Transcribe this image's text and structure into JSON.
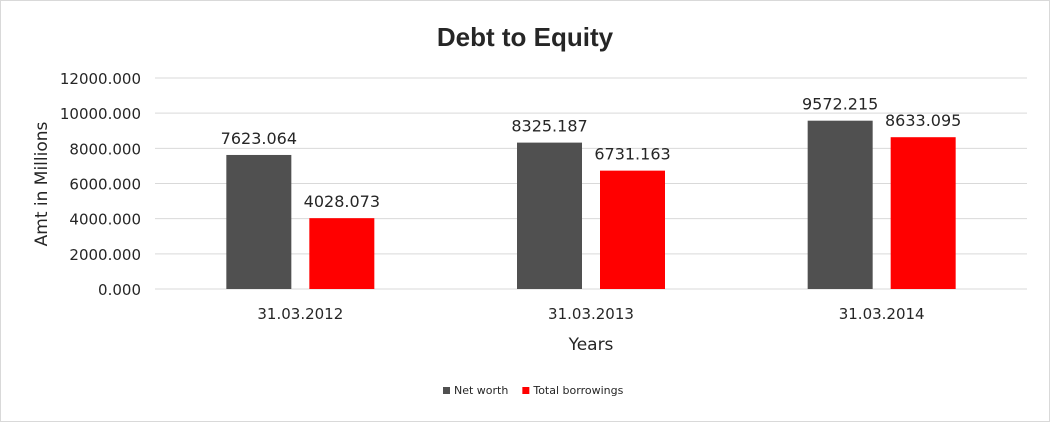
{
  "chart_data": {
    "type": "bar",
    "title": "Debt to Equity",
    "xlabel": "Years",
    "ylabel": "Amt in Millions",
    "categories": [
      "31.03.2012",
      "31.03.2013",
      "31.03.2014"
    ],
    "series": [
      {
        "name": "Net worth",
        "color": "#505050",
        "values": [
          7623.064,
          8325.187,
          9572.215
        ],
        "labels": [
          "7623.064",
          "8325.187",
          "9572.215"
        ]
      },
      {
        "name": "Total borrowings",
        "color": "#ff0000",
        "values": [
          4028.073,
          6731.163,
          8633.095
        ],
        "labels": [
          "4028.073",
          "6731.163",
          "8633.095"
        ]
      }
    ],
    "ylim": [
      0,
      12000
    ],
    "yticks": [
      0,
      2000,
      4000,
      6000,
      8000,
      10000,
      12000
    ],
    "ytick_labels": [
      "0.000",
      "2000.000",
      "4000.000",
      "6000.000",
      "8000.000",
      "10000.000",
      "12000.000"
    ],
    "grid": true,
    "legend_position": "bottom"
  }
}
